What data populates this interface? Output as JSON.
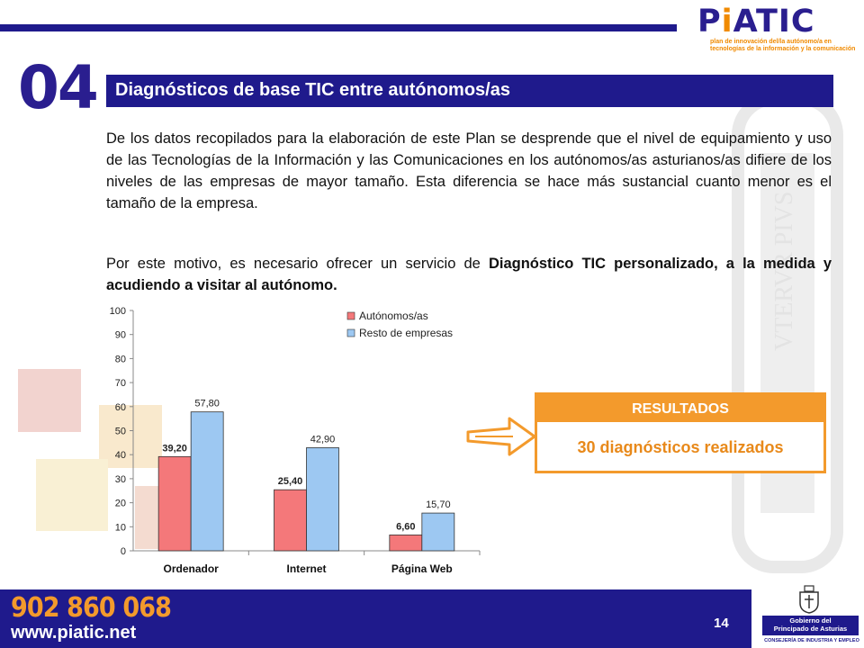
{
  "header": {
    "logo_word_prefix": "P",
    "logo_word_i": "i",
    "logo_word_suffix": "ATIC",
    "logo_tagline_1": "plan de innovación del/la autónomo/a en",
    "logo_tagline_2": "tecnologías de la información y la comunicación"
  },
  "section": {
    "number": "04",
    "title": "Diagnósticos de base TIC entre autónomos/as"
  },
  "body": {
    "paragraph_1": "De los datos recopilados para la elaboración de este Plan se desprende que el nivel de equipamiento y uso de las Tecnologías de la Información y las Comunicaciones en los autónomos/as asturianos/as difiere de los niveles de las empresas de mayor tamaño. Esta diferencia se hace más sustancial cuanto menor es el tamaño de la empresa.",
    "paragraph_2_plain": "Por este motivo, es necesario ofrecer un servicio de ",
    "paragraph_2_bold": "Diagnóstico TIC personalizado, a la medida y acudiendo a visitar al autónomo."
  },
  "results": {
    "heading": "RESULTADOS",
    "value": "30 diagnósticos realizados",
    "accent_color": "#f39a2c"
  },
  "footer": {
    "phone": "902 860 068",
    "website": "www.piatic.net",
    "page_number": "14",
    "gov_line_1": "Gobierno del",
    "gov_line_2": "Principado de Asturias",
    "gov_sub": "CONSEJERÍA DE INDUSTRIA Y EMPLEO"
  },
  "chart_data": {
    "type": "bar",
    "categories": [
      "Ordenador",
      "Internet",
      "Página Web"
    ],
    "series": [
      {
        "name": "Autónomos/as",
        "color": "#f4787a",
        "values": [
          39.2,
          25.4,
          6.6
        ],
        "labels": [
          "39,20",
          "25,40",
          "6,60"
        ]
      },
      {
        "name": "Resto de empresas",
        "color": "#9dc8f2",
        "values": [
          57.8,
          42.9,
          15.7
        ],
        "labels": [
          "57,80",
          "42,90",
          "15,70"
        ]
      }
    ],
    "ylim": [
      0,
      100
    ],
    "yticks": [
      "0",
      "10",
      "20",
      "30",
      "40",
      "50",
      "60",
      "70",
      "80",
      "90",
      "100"
    ],
    "legend_position": "top-right",
    "grid": false
  }
}
